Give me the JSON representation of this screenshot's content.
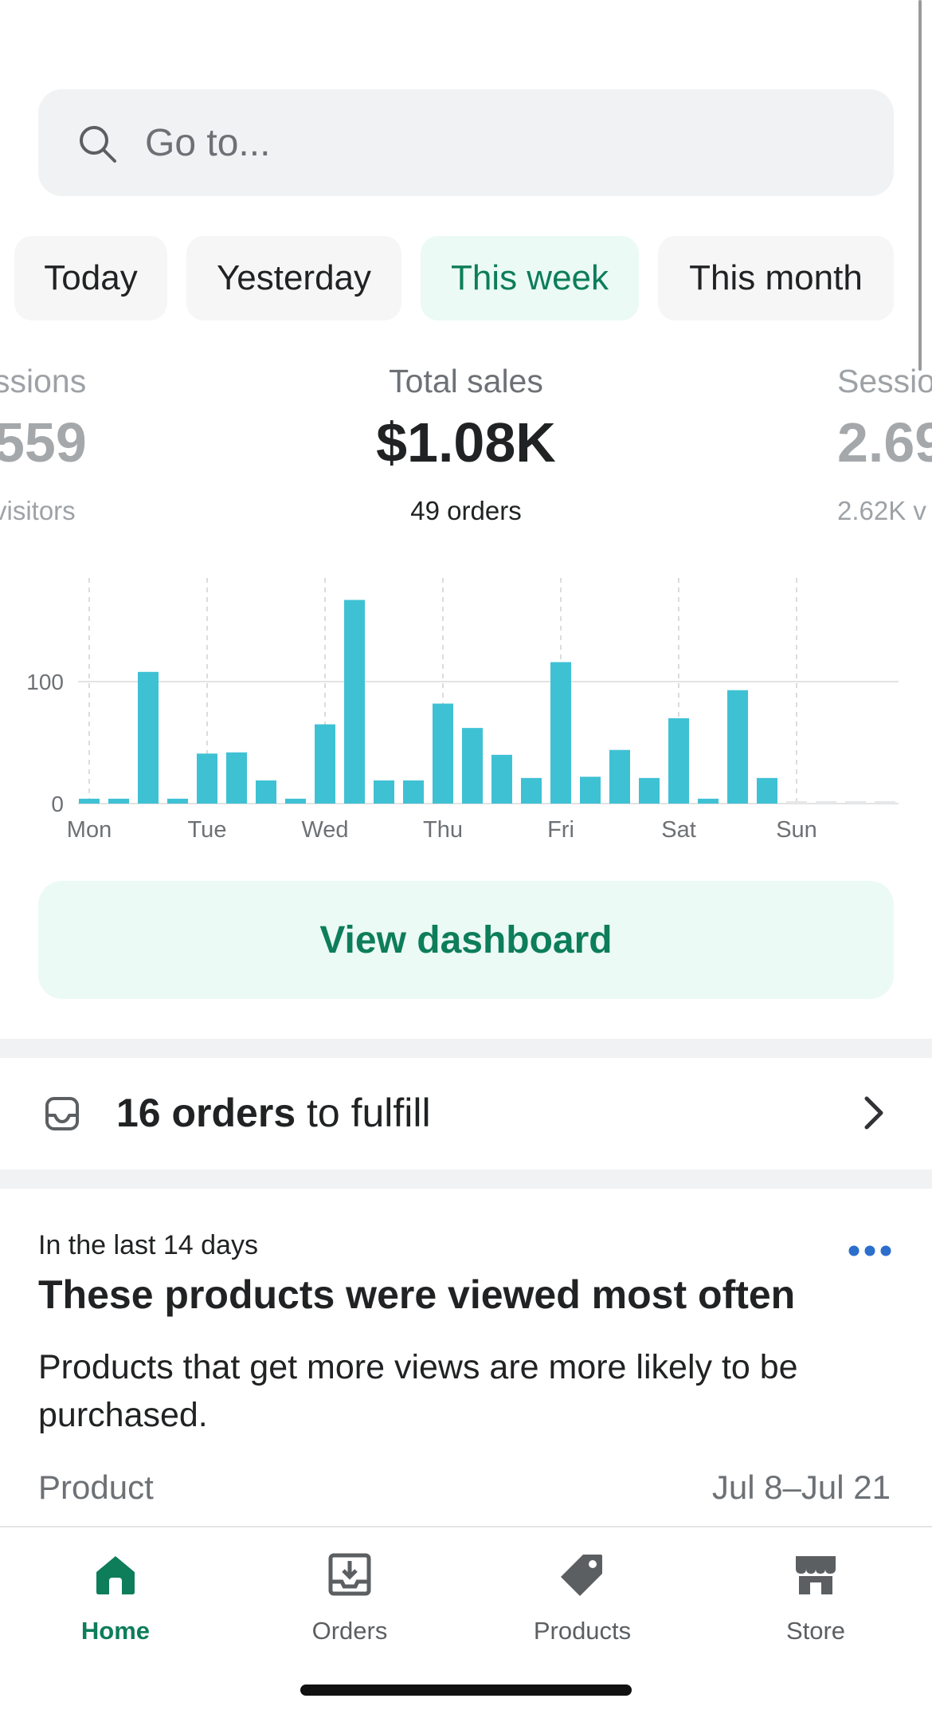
{
  "search": {
    "placeholder": "Go to..."
  },
  "date_filters": [
    {
      "label": "Today",
      "active": false
    },
    {
      "label": "Yesterday",
      "active": false
    },
    {
      "label": "This week",
      "active": true
    },
    {
      "label": "This month",
      "active": false
    }
  ],
  "metrics": {
    "left": {
      "label": "ssions",
      "value": "559",
      "sub": "visitors"
    },
    "center": {
      "label": "Total sales",
      "value": "$1.08K",
      "sub": "49 orders"
    },
    "right": {
      "label": "Sessio",
      "value": "2.69",
      "sub": "2.62K v"
    }
  },
  "chart_data": {
    "type": "bar",
    "days": [
      "Mon",
      "Tue",
      "Wed",
      "Thu",
      "Fri",
      "Sat",
      "Sun"
    ],
    "y_ticks": [
      "0",
      "100"
    ],
    "ylim": [
      0,
      185
    ],
    "bar_color": "#3fc1d4",
    "values": [
      4,
      4,
      108,
      4,
      41,
      42,
      19,
      4,
      65,
      167,
      19,
      19,
      82,
      62,
      40,
      21,
      116,
      22,
      44,
      21,
      70,
      4,
      93,
      21,
      0,
      0,
      0,
      0
    ]
  },
  "dashboard_button": {
    "label": "View dashboard"
  },
  "fulfill": {
    "count_text": "16 orders",
    "rest_text": " to fulfill"
  },
  "products_card": {
    "eyebrow": "In the last 14 days",
    "title": "These products were viewed most often",
    "description": "Products that get more views are more likely to be purchased.",
    "column_product": "Product",
    "column_date": "Jul 8–Jul 21"
  },
  "nav": [
    {
      "label": "Home",
      "active": true
    },
    {
      "label": "Orders",
      "active": false
    },
    {
      "label": "Products",
      "active": false
    },
    {
      "label": "Store",
      "active": false
    }
  ],
  "colors": {
    "accent": "#0d7d5a",
    "accent_bg": "#ebfaf4",
    "chart": "#3fc1d4"
  }
}
